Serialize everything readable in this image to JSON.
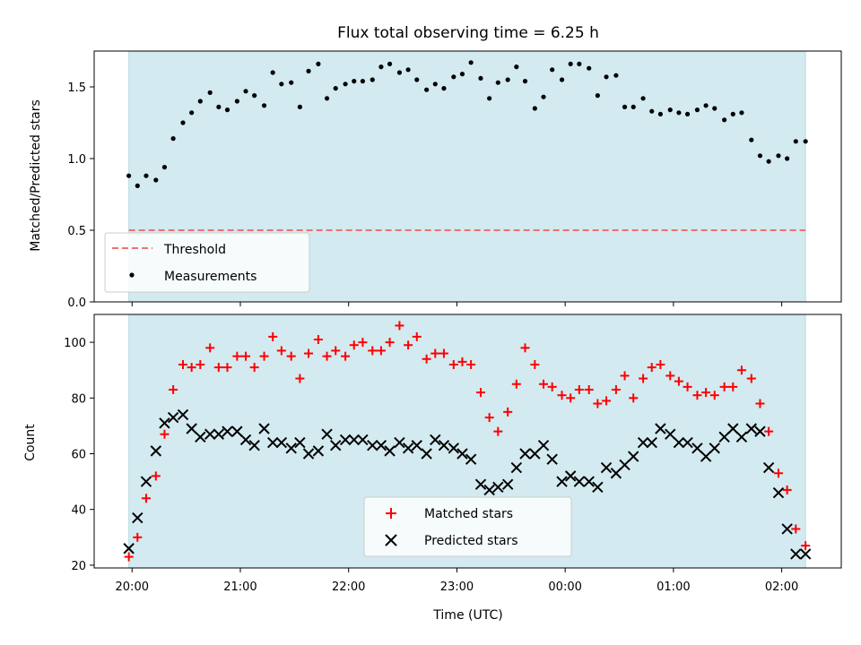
{
  "chart_data": [
    {
      "type": "scatter",
      "title": "Flux total observing time = 6.25 h",
      "xlabel": "",
      "ylabel": "Matched/Predicted stars",
      "ylim": [
        0,
        1.75
      ],
      "yticks": [
        0.0,
        0.5,
        1.0,
        1.5
      ],
      "ytick_labels": [
        "0.0",
        "0.5",
        "1.0",
        "1.5"
      ],
      "xlim": [
        -0.35,
        6.55
      ],
      "x_unit": "hours after 20:00 UTC",
      "shaded_span": [
        -0.03,
        6.22
      ],
      "shade_color": "#d3eaf0",
      "threshold": {
        "name": "Threshold",
        "value": 0.5,
        "color": "#f07070"
      },
      "legend": {
        "placement": "lower-left",
        "entries": [
          "Threshold",
          "Measurements"
        ]
      },
      "series": [
        {
          "name": "Measurements",
          "color": "#000000",
          "marker": "dot",
          "x": [
            -0.03,
            0.05,
            0.13,
            0.22,
            0.3,
            0.38,
            0.47,
            0.55,
            0.63,
            0.72,
            0.8,
            0.88,
            0.97,
            1.05,
            1.13,
            1.22,
            1.3,
            1.38,
            1.47,
            1.55,
            1.63,
            1.72,
            1.8,
            1.88,
            1.97,
            2.05,
            2.13,
            2.22,
            2.3,
            2.38,
            2.47,
            2.55,
            2.63,
            2.72,
            2.8,
            2.88,
            2.97,
            3.05,
            3.13,
            3.22,
            3.3,
            3.38,
            3.47,
            3.55,
            3.63,
            3.72,
            3.8,
            3.88,
            3.97,
            4.05,
            4.13,
            4.22,
            4.3,
            4.38,
            4.47,
            4.55,
            4.63,
            4.72,
            4.8,
            4.88,
            4.97,
            5.05,
            5.13,
            5.22,
            5.3,
            5.38,
            5.47,
            5.55,
            5.63,
            5.72,
            5.8,
            5.88,
            5.97,
            6.05,
            6.13,
            6.22
          ],
          "y": [
            0.88,
            0.81,
            0.88,
            0.85,
            0.94,
            1.14,
            1.25,
            1.32,
            1.4,
            1.46,
            1.36,
            1.34,
            1.4,
            1.47,
            1.44,
            1.37,
            1.6,
            1.52,
            1.53,
            1.36,
            1.61,
            1.66,
            1.42,
            1.49,
            1.52,
            1.54,
            1.54,
            1.55,
            1.64,
            1.66,
            1.6,
            1.62,
            1.55,
            1.48,
            1.52,
            1.49,
            1.57,
            1.59,
            1.67,
            1.56,
            1.42,
            1.53,
            1.55,
            1.64,
            1.54,
            1.35,
            1.43,
            1.62,
            1.55,
            1.66,
            1.66,
            1.63,
            1.44,
            1.57,
            1.58,
            1.36,
            1.36,
            1.42,
            1.33,
            1.31,
            1.34,
            1.32,
            1.31,
            1.34,
            1.37,
            1.35,
            1.27,
            1.31,
            1.32,
            1.13,
            1.02,
            0.98,
            1.02,
            1.0,
            1.12,
            1.12
          ]
        }
      ]
    },
    {
      "type": "scatter",
      "title": "",
      "xlabel": "Time (UTC)",
      "ylabel": "Count",
      "ylim": [
        19,
        110
      ],
      "yticks": [
        20,
        40,
        60,
        80,
        100
      ],
      "ytick_labels": [
        "20",
        "40",
        "60",
        "80",
        "100"
      ],
      "xlim": [
        -0.35,
        6.55
      ],
      "x_unit": "hours after 20:00 UTC",
      "xticks": [
        0,
        1,
        2,
        3,
        4,
        5,
        6
      ],
      "xtick_labels": [
        "20:00",
        "21:00",
        "22:00",
        "23:00",
        "00:00",
        "01:00",
        "02:00"
      ],
      "shaded_span": [
        -0.03,
        6.22
      ],
      "legend": {
        "placement": "lower-center",
        "entries": [
          "Matched stars",
          "Predicted stars"
        ]
      },
      "series": [
        {
          "name": "Matched stars",
          "color": "#ff0000",
          "marker": "plus",
          "x": [
            -0.03,
            0.05,
            0.13,
            0.22,
            0.3,
            0.38,
            0.47,
            0.55,
            0.63,
            0.72,
            0.8,
            0.88,
            0.97,
            1.05,
            1.13,
            1.22,
            1.3,
            1.38,
            1.47,
            1.55,
            1.63,
            1.72,
            1.8,
            1.88,
            1.97,
            2.05,
            2.13,
            2.22,
            2.3,
            2.38,
            2.47,
            2.55,
            2.63,
            2.72,
            2.8,
            2.88,
            2.97,
            3.05,
            3.13,
            3.22,
            3.3,
            3.38,
            3.47,
            3.55,
            3.63,
            3.72,
            3.8,
            3.88,
            3.97,
            4.05,
            4.13,
            4.22,
            4.3,
            4.38,
            4.47,
            4.55,
            4.63,
            4.72,
            4.8,
            4.88,
            4.97,
            5.05,
            5.13,
            5.22,
            5.3,
            5.38,
            5.47,
            5.55,
            5.63,
            5.72,
            5.8,
            5.88,
            5.97,
            6.05,
            6.13,
            6.22
          ],
          "y": [
            23,
            30,
            44,
            52,
            67,
            83,
            92,
            91,
            92,
            98,
            91,
            91,
            95,
            95,
            91,
            95,
            102,
            97,
            95,
            87,
            96,
            101,
            95,
            97,
            95,
            99,
            100,
            97,
            97,
            100,
            106,
            99,
            102,
            94,
            96,
            96,
            92,
            93,
            92,
            82,
            73,
            68,
            75,
            85,
            98,
            92,
            85,
            84,
            81,
            80,
            83,
            83,
            78,
            79,
            83,
            88,
            80,
            87,
            91,
            92,
            88,
            86,
            84,
            81,
            82,
            81,
            84,
            84,
            90,
            87,
            78,
            68,
            53,
            47,
            33,
            27
          ]
        },
        {
          "name": "Predicted stars",
          "color": "#000000",
          "marker": "x",
          "x": [
            -0.03,
            0.05,
            0.13,
            0.22,
            0.3,
            0.38,
            0.47,
            0.55,
            0.63,
            0.72,
            0.8,
            0.88,
            0.97,
            1.05,
            1.13,
            1.22,
            1.3,
            1.38,
            1.47,
            1.55,
            1.63,
            1.72,
            1.8,
            1.88,
            1.97,
            2.05,
            2.13,
            2.22,
            2.3,
            2.38,
            2.47,
            2.55,
            2.63,
            2.72,
            2.8,
            2.88,
            2.97,
            3.05,
            3.13,
            3.22,
            3.3,
            3.38,
            3.47,
            3.55,
            3.63,
            3.72,
            3.8,
            3.88,
            3.97,
            4.05,
            4.13,
            4.22,
            4.3,
            4.38,
            4.47,
            4.55,
            4.63,
            4.72,
            4.8,
            4.88,
            4.97,
            5.05,
            5.13,
            5.22,
            5.3,
            5.38,
            5.47,
            5.55,
            5.63,
            5.72,
            5.8,
            5.88,
            5.97,
            6.05,
            6.13,
            6.22
          ],
          "y": [
            26,
            37,
            50,
            61,
            71,
            73,
            74,
            69,
            66,
            67,
            67,
            68,
            68,
            65,
            63,
            69,
            64,
            64,
            62,
            64,
            60,
            61,
            67,
            63,
            65,
            65,
            65,
            63,
            63,
            61,
            64,
            62,
            63,
            60,
            65,
            63,
            62,
            60,
            58,
            49,
            47,
            48,
            49,
            55,
            60,
            60,
            63,
            58,
            50,
            52,
            50,
            50,
            48,
            55,
            53,
            56,
            59,
            64,
            64,
            69,
            67,
            64,
            64,
            62,
            59,
            62,
            66,
            69,
            66,
            69,
            68,
            55,
            46,
            33,
            24,
            24
          ]
        }
      ]
    }
  ]
}
